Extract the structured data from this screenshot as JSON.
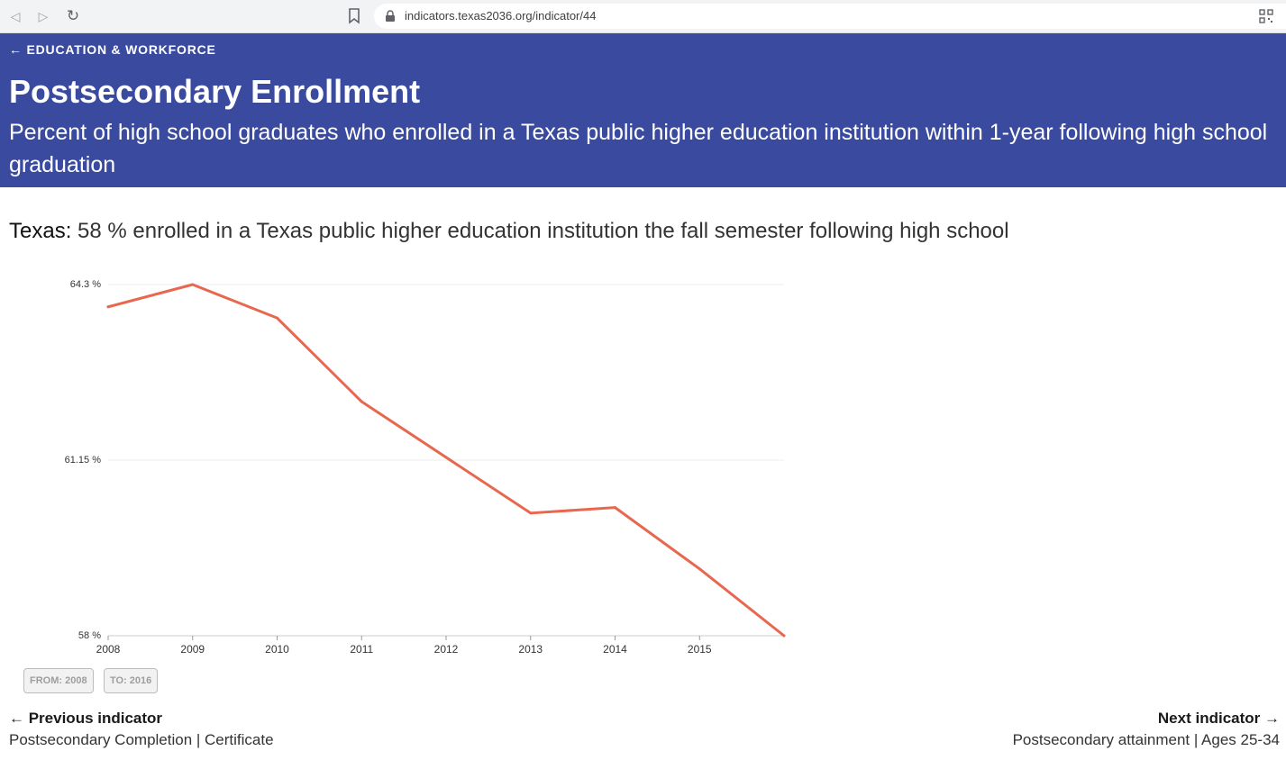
{
  "browser": {
    "url": "indicators.texas2036.org/indicator/44",
    "back_glyph": "◁",
    "forward_glyph": "▷",
    "reload_glyph": "↻"
  },
  "header": {
    "back_link": "← EDUCATION & WORKFORCE",
    "title": "Postsecondary Enrollment",
    "subtitle": "Percent of high school graduates who enrolled in a Texas public higher education institution within 1-year following high school graduation",
    "background_color": "#3a4a9f"
  },
  "summary": {
    "region": "Texas:",
    "value": "58 %",
    "text": "enrolled in a Texas public higher education institution the fall semester following high school"
  },
  "chart_data": {
    "type": "line",
    "x": [
      2008,
      2009,
      2010,
      2011,
      2012,
      2013,
      2014,
      2015,
      2016
    ],
    "x_tick_labels": [
      "2008",
      "2009",
      "2010",
      "2011",
      "2012",
      "2013",
      "2014",
      "2015"
    ],
    "y_tick_values": [
      58,
      61.15,
      64.3
    ],
    "y_tick_labels": [
      "58 %",
      "61.15 %",
      "64.3 %"
    ],
    "ylim": [
      58,
      64.3
    ],
    "series": [
      {
        "values": [
          63.9,
          64.3,
          63.7,
          62.2,
          61.2,
          60.2,
          60.3,
          59.2,
          58.0
        ],
        "color": "#e8674f"
      }
    ],
    "grid": true
  },
  "range": {
    "from_label": "FROM: 2008",
    "to_label": "TO: 2016"
  },
  "pager": {
    "previous_label": "← Previous indicator",
    "previous_title": "Postsecondary Completion | Certificate",
    "next_label": "Next indicator →",
    "next_title": "Postsecondary attainment | Ages 25-34"
  }
}
